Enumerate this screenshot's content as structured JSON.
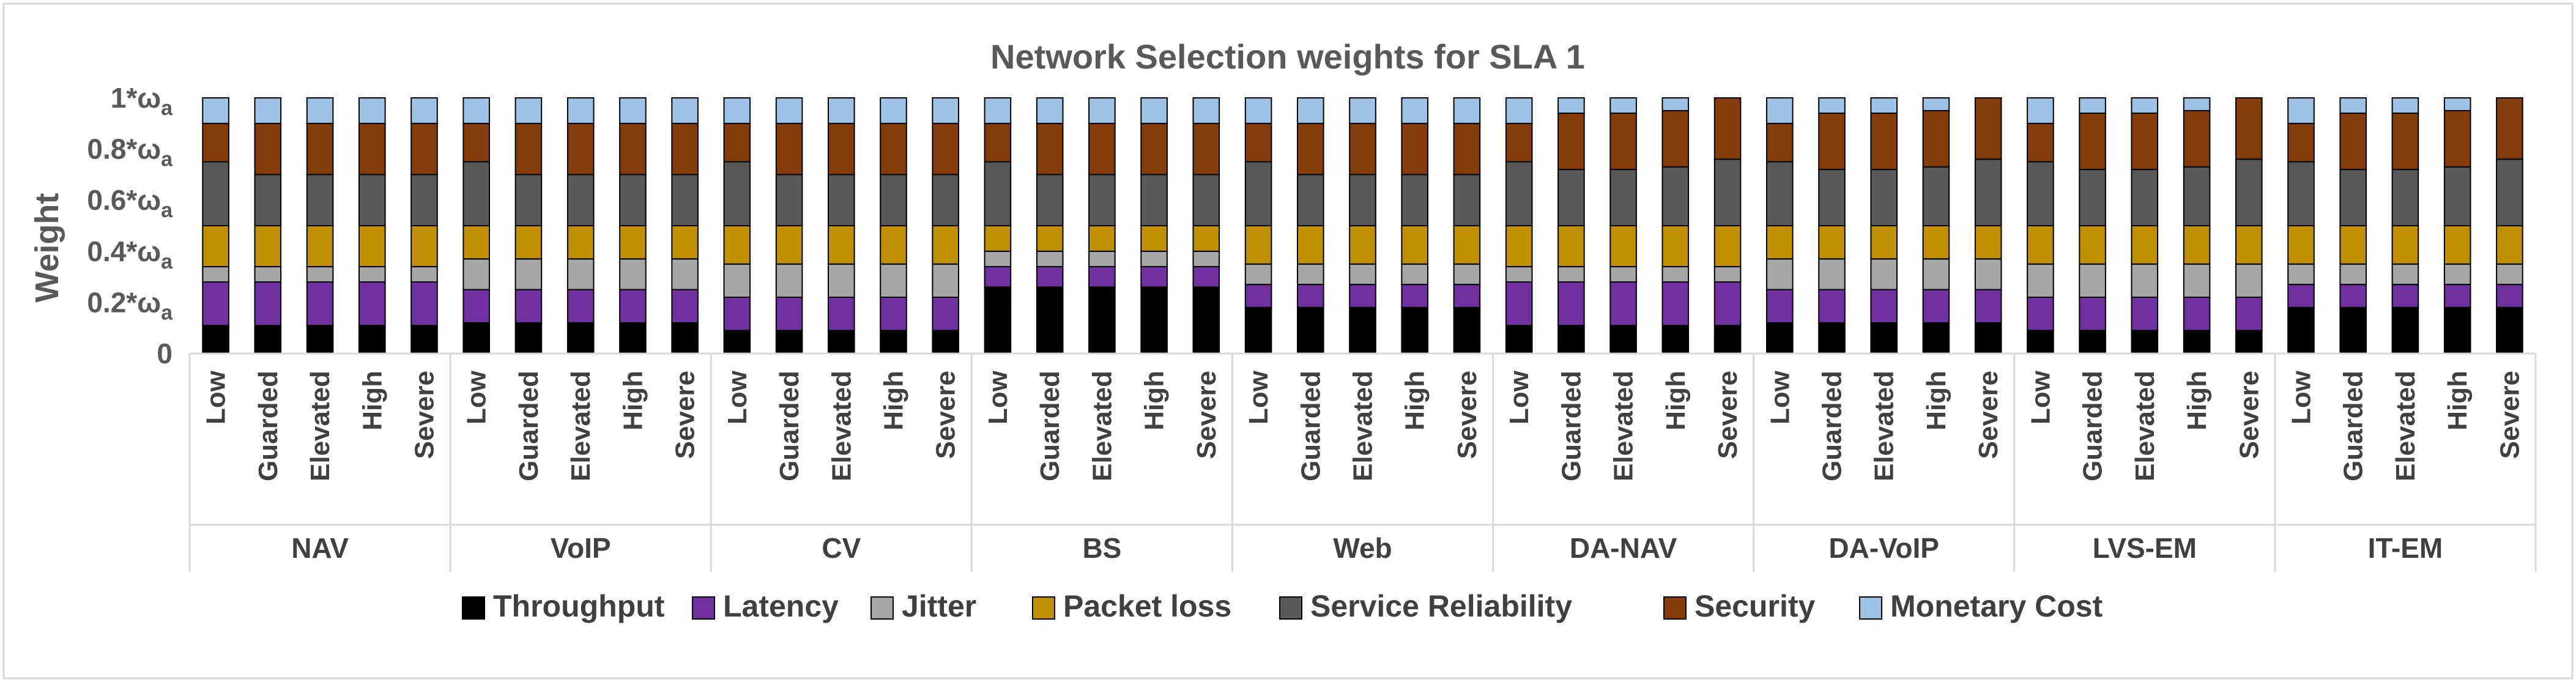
{
  "chart_data": {
    "type": "bar",
    "stacked": true,
    "title": "Network Selection weights for SLA 1",
    "ylabel": "Weight",
    "ylim": [
      0,
      1
    ],
    "yticks": [
      {
        "value": 0,
        "label": "0"
      },
      {
        "value": 0.2,
        "label": "0.2*ω",
        "sub": "a"
      },
      {
        "value": 0.4,
        "label": "0.4*ω",
        "sub": "a"
      },
      {
        "value": 0.6,
        "label": "0.6*ω",
        "sub": "a"
      },
      {
        "value": 0.8,
        "label": "0.8*ω",
        "sub": "a"
      },
      {
        "value": 1,
        "label": "1*ω",
        "sub": "a"
      }
    ],
    "legend_position": "bottom",
    "levels": [
      "Low",
      "Guarded",
      "Elevated",
      "High",
      "Severe"
    ],
    "groups": [
      "NAV",
      "VoIP",
      "CV",
      "BS",
      "Web",
      "DA-NAV",
      "DA-VoIP",
      "LVS-EM",
      "IT-EM"
    ],
    "series": [
      {
        "name": "Throughput",
        "color": "#000000"
      },
      {
        "name": "Latency",
        "color": "#7030A0"
      },
      {
        "name": "Jitter",
        "color": "#A6A6A6"
      },
      {
        "name": "Packet loss",
        "color": "#BF9000"
      },
      {
        "name": "Service Reliability",
        "color": "#595959"
      },
      {
        "name": "Security",
        "color": "#843C0C"
      },
      {
        "name": "Monetary Cost",
        "color": "#9DC3E6"
      }
    ],
    "stacks": {
      "NAV": [
        [
          0.11,
          0.17,
          0.06,
          0.16,
          0.25,
          0.15,
          0.1
        ],
        [
          0.11,
          0.17,
          0.06,
          0.16,
          0.2,
          0.2,
          0.1
        ],
        [
          0.11,
          0.17,
          0.06,
          0.16,
          0.2,
          0.2,
          0.1
        ],
        [
          0.11,
          0.17,
          0.06,
          0.16,
          0.2,
          0.2,
          0.1
        ],
        [
          0.11,
          0.17,
          0.06,
          0.16,
          0.2,
          0.2,
          0.1
        ]
      ],
      "VoIP": [
        [
          0.12,
          0.13,
          0.12,
          0.13,
          0.25,
          0.15,
          0.1
        ],
        [
          0.12,
          0.13,
          0.12,
          0.13,
          0.2,
          0.2,
          0.1
        ],
        [
          0.12,
          0.13,
          0.12,
          0.13,
          0.2,
          0.2,
          0.1
        ],
        [
          0.12,
          0.13,
          0.12,
          0.13,
          0.2,
          0.2,
          0.1
        ],
        [
          0.12,
          0.13,
          0.12,
          0.13,
          0.2,
          0.2,
          0.1
        ]
      ],
      "CV": [
        [
          0.09,
          0.13,
          0.13,
          0.15,
          0.25,
          0.15,
          0.1
        ],
        [
          0.09,
          0.13,
          0.13,
          0.15,
          0.2,
          0.2,
          0.1
        ],
        [
          0.09,
          0.13,
          0.13,
          0.15,
          0.2,
          0.2,
          0.1
        ],
        [
          0.09,
          0.13,
          0.13,
          0.15,
          0.2,
          0.2,
          0.1
        ],
        [
          0.09,
          0.13,
          0.13,
          0.15,
          0.2,
          0.2,
          0.1
        ]
      ],
      "BS": [
        [
          0.26,
          0.08,
          0.06,
          0.1,
          0.25,
          0.15,
          0.1
        ],
        [
          0.26,
          0.08,
          0.06,
          0.1,
          0.2,
          0.2,
          0.1
        ],
        [
          0.26,
          0.08,
          0.06,
          0.1,
          0.2,
          0.2,
          0.1
        ],
        [
          0.26,
          0.08,
          0.06,
          0.1,
          0.2,
          0.2,
          0.1
        ],
        [
          0.26,
          0.08,
          0.06,
          0.1,
          0.2,
          0.2,
          0.1
        ]
      ],
      "Web": [
        [
          0.18,
          0.09,
          0.08,
          0.15,
          0.25,
          0.15,
          0.1
        ],
        [
          0.18,
          0.09,
          0.08,
          0.15,
          0.2,
          0.2,
          0.1
        ],
        [
          0.18,
          0.09,
          0.08,
          0.15,
          0.2,
          0.2,
          0.1
        ],
        [
          0.18,
          0.09,
          0.08,
          0.15,
          0.2,
          0.2,
          0.1
        ],
        [
          0.18,
          0.09,
          0.08,
          0.15,
          0.2,
          0.2,
          0.1
        ]
      ],
      "DA-NAV": [
        [
          0.11,
          0.17,
          0.06,
          0.16,
          0.25,
          0.15,
          0.1
        ],
        [
          0.11,
          0.17,
          0.06,
          0.16,
          0.22,
          0.22,
          0.06
        ],
        [
          0.11,
          0.17,
          0.06,
          0.16,
          0.22,
          0.22,
          0.06
        ],
        [
          0.11,
          0.17,
          0.06,
          0.16,
          0.23,
          0.22,
          0.05
        ],
        [
          0.11,
          0.17,
          0.06,
          0.16,
          0.26,
          0.24,
          0.0
        ]
      ],
      "DA-VoIP": [
        [
          0.12,
          0.13,
          0.12,
          0.13,
          0.25,
          0.15,
          0.1
        ],
        [
          0.12,
          0.13,
          0.12,
          0.13,
          0.22,
          0.22,
          0.06
        ],
        [
          0.12,
          0.13,
          0.12,
          0.13,
          0.22,
          0.22,
          0.06
        ],
        [
          0.12,
          0.13,
          0.12,
          0.13,
          0.23,
          0.22,
          0.05
        ],
        [
          0.12,
          0.13,
          0.12,
          0.13,
          0.26,
          0.24,
          0.0
        ]
      ],
      "LVS-EM": [
        [
          0.09,
          0.13,
          0.13,
          0.15,
          0.25,
          0.15,
          0.1
        ],
        [
          0.09,
          0.13,
          0.13,
          0.15,
          0.22,
          0.22,
          0.06
        ],
        [
          0.09,
          0.13,
          0.13,
          0.15,
          0.22,
          0.22,
          0.06
        ],
        [
          0.09,
          0.13,
          0.13,
          0.15,
          0.23,
          0.22,
          0.05
        ],
        [
          0.09,
          0.13,
          0.13,
          0.15,
          0.26,
          0.24,
          0.0
        ]
      ],
      "IT-EM": [
        [
          0.18,
          0.09,
          0.08,
          0.15,
          0.25,
          0.15,
          0.1
        ],
        [
          0.18,
          0.09,
          0.08,
          0.15,
          0.22,
          0.22,
          0.06
        ],
        [
          0.18,
          0.09,
          0.08,
          0.15,
          0.22,
          0.22,
          0.06
        ],
        [
          0.18,
          0.09,
          0.08,
          0.15,
          0.23,
          0.22,
          0.05
        ],
        [
          0.18,
          0.09,
          0.08,
          0.15,
          0.26,
          0.24,
          0.0
        ]
      ]
    }
  }
}
